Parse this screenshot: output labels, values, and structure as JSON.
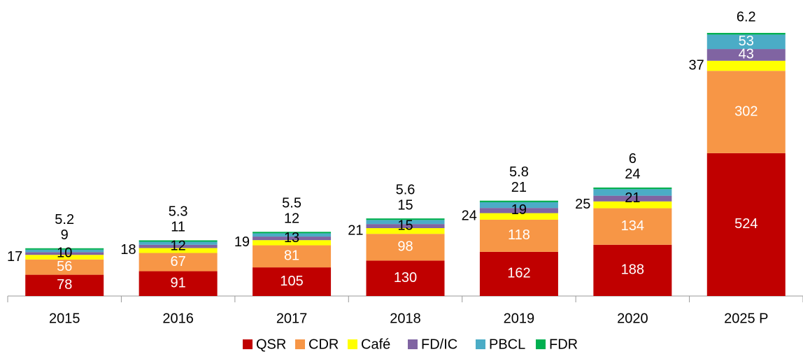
{
  "chart_data": {
    "type": "stacked_bar",
    "categories": [
      "2015",
      "2016",
      "2017",
      "2018",
      "2019",
      "2020",
      "2025 P"
    ],
    "series": [
      {
        "name": "QSR",
        "color": "#c00000",
        "values": [
          78,
          91,
          105,
          130,
          162,
          188,
          524
        ]
      },
      {
        "name": "CDR",
        "color": "#f79646",
        "values": [
          56,
          67,
          81,
          98,
          118,
          134,
          302
        ]
      },
      {
        "name": "Café",
        "color": "#ffff00",
        "values": [
          17,
          18,
          19,
          21,
          24,
          25,
          37
        ]
      },
      {
        "name": "FD/IC",
        "color": "#8064a2",
        "values": [
          10,
          12,
          13,
          15,
          19,
          21,
          43
        ]
      },
      {
        "name": "PBCL",
        "color": "#4bacc6",
        "values": [
          9,
          11,
          12,
          15,
          21,
          24,
          53
        ]
      },
      {
        "name": "FDR",
        "color": "#00b050",
        "values": [
          5.2,
          5.3,
          5.5,
          5.6,
          5.8,
          6,
          6.2
        ]
      }
    ],
    "legend": "bottom"
  }
}
